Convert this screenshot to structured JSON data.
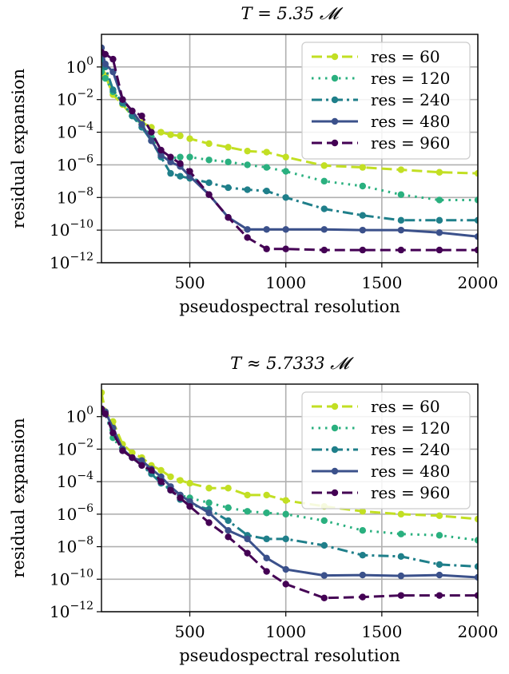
{
  "chart_data": [
    {
      "type": "line",
      "title": "T = 5.35 𝓜",
      "xlabel": "pseudospectral resolution",
      "ylabel": "residual expansion",
      "xlim": [
        40,
        2000
      ],
      "ylim": [
        1e-12,
        100.0
      ],
      "yscale": "log",
      "grid": true,
      "legend_position": "top-right",
      "x_ticks": [
        500,
        1000,
        1500,
        2000
      ],
      "x_tick_labels": [
        "500",
        "1000",
        "1500",
        "2000"
      ],
      "y_ticks": [
        1.0,
        0.01,
        0.0001,
        1e-06,
        1e-08,
        1e-10,
        1e-12
      ],
      "y_tick_labels": [
        {
          "base": "10",
          "exp": "0"
        },
        {
          "base": "10",
          "exp": "−2"
        },
        {
          "base": "10",
          "exp": "−4"
        },
        {
          "base": "10",
          "exp": "−6"
        },
        {
          "base": "10",
          "exp": "−8"
        },
        {
          "base": "10",
          "exp": "−10"
        },
        {
          "base": "10",
          "exp": "−12"
        }
      ],
      "series": [
        {
          "name": "res = 60",
          "color": "#c2df23",
          "dash": "dashed",
          "x": [
            40,
            60,
            100,
            150,
            200,
            250,
            300,
            350,
            400,
            450,
            500,
            600,
            700,
            800,
            900,
            1000,
            1200,
            1400,
            1600,
            1800,
            2000
          ],
          "y": [
            1.5,
            0.3,
            0.02,
            0.005,
            0.001,
            0.0004,
            0.0002,
            0.0001,
            7e-05,
            6e-05,
            4e-05,
            2e-05,
            1.2e-05,
            7e-06,
            6e-06,
            3e-06,
            9e-07,
            7e-07,
            5e-07,
            3.5e-07,
            3e-07
          ]
        },
        {
          "name": "res = 120",
          "color": "#2ab07f",
          "dash": "dotted",
          "x": [
            40,
            60,
            100,
            150,
            200,
            250,
            300,
            350,
            400,
            450,
            500,
            600,
            700,
            800,
            900,
            1000,
            1200,
            1400,
            1600,
            1800,
            2000
          ],
          "y": [
            0.5,
            0.2,
            0.03,
            0.006,
            0.001,
            0.0003,
            5e-05,
            6e-06,
            2.5e-06,
            3e-06,
            3e-06,
            2e-06,
            1.5e-06,
            1e-06,
            7e-07,
            4e-07,
            1e-07,
            5e-08,
            1.5e-08,
            7e-09,
            7e-09
          ]
        },
        {
          "name": "res = 240",
          "color": "#1f7f8a",
          "dash": "dashdot",
          "x": [
            40,
            60,
            100,
            150,
            200,
            250,
            300,
            350,
            400,
            450,
            500,
            600,
            700,
            800,
            900,
            1000,
            1200,
            1400,
            1600,
            1800,
            2000
          ],
          "y": [
            3,
            1,
            0.04,
            0.006,
            0.001,
            0.0002,
            3e-05,
            3e-06,
            3e-07,
            2e-07,
            1.5e-07,
            8e-08,
            4e-08,
            3e-08,
            2.5e-08,
            1e-08,
            2e-09,
            8e-10,
            4e-10,
            4e-10,
            4e-10
          ]
        },
        {
          "name": "res = 480",
          "color": "#3b518b",
          "dash": "solid",
          "x": [
            40,
            60,
            100,
            150,
            200,
            250,
            300,
            350,
            400,
            450,
            500,
            600,
            700,
            800,
            900,
            1000,
            1200,
            1400,
            1600,
            1800,
            2000
          ],
          "y": [
            15,
            1.5,
            0.5,
            0.01,
            0.002,
            0.0003,
            3e-05,
            4e-06,
            1.5e-06,
            8e-07,
            2e-07,
            1.5e-08,
            6e-10,
            1.1e-10,
            1.1e-10,
            1.1e-10,
            1.1e-10,
            1e-10,
            1e-10,
            7e-11,
            4e-11
          ]
        },
        {
          "name": "res = 960",
          "color": "#440154",
          "dash": "dashed",
          "x": [
            40,
            60,
            100,
            150,
            200,
            250,
            300,
            350,
            400,
            450,
            500,
            600,
            700,
            800,
            900,
            1000,
            1200,
            1400,
            1600,
            1800,
            2000
          ],
          "y": [
            8,
            6,
            3,
            0.01,
            0.002,
            0.001,
            0.0001,
            8e-06,
            3e-06,
            1.2e-06,
            4e-07,
            1.5e-08,
            6e-10,
            3.5e-11,
            7e-12,
            7e-12,
            6e-12,
            6e-12,
            6e-12,
            6e-12,
            6e-12
          ]
        }
      ]
    },
    {
      "type": "line",
      "title": "T ≈ 5.7333 𝓜",
      "xlabel": "pseudospectral resolution",
      "ylabel": "residual expansion",
      "xlim": [
        40,
        2000
      ],
      "ylim": [
        1e-12,
        100.0
      ],
      "yscale": "log",
      "grid": true,
      "legend_position": "top-right",
      "x_ticks": [
        500,
        1000,
        1500,
        2000
      ],
      "x_tick_labels": [
        "500",
        "1000",
        "1500",
        "2000"
      ],
      "y_ticks": [
        1.0,
        0.01,
        0.0001,
        1e-06,
        1e-08,
        1e-10,
        1e-12
      ],
      "y_tick_labels": [
        {
          "base": "10",
          "exp": "0"
        },
        {
          "base": "10",
          "exp": "−2"
        },
        {
          "base": "10",
          "exp": "−4"
        },
        {
          "base": "10",
          "exp": "−6"
        },
        {
          "base": "10",
          "exp": "−8"
        },
        {
          "base": "10",
          "exp": "−10"
        },
        {
          "base": "10",
          "exp": "−12"
        }
      ],
      "series": [
        {
          "name": "res = 60",
          "color": "#c2df23",
          "dash": "dashed",
          "x": [
            40,
            60,
            100,
            150,
            200,
            250,
            300,
            350,
            400,
            450,
            500,
            600,
            700,
            800,
            900,
            1000,
            1200,
            1400,
            1600,
            1800,
            2000
          ],
          "y": [
            30,
            2,
            0.5,
            0.02,
            0.006,
            0.003,
            0.001,
            0.0005,
            0.0002,
            0.00012,
            8e-05,
            4e-05,
            4e-05,
            1.5e-05,
            1.5e-05,
            7e-06,
            3e-06,
            1.5e-06,
            1e-06,
            8e-07,
            5e-07
          ]
        },
        {
          "name": "res = 120",
          "color": "#2ab07f",
          "dash": "dotted",
          "x": [
            40,
            60,
            100,
            150,
            200,
            250,
            300,
            350,
            400,
            450,
            500,
            600,
            700,
            800,
            900,
            1000,
            1200,
            1400,
            1600,
            1800,
            2000
          ],
          "y": [
            2,
            1.5,
            0.05,
            0.008,
            0.003,
            0.001,
            0.0004,
            0.0001,
            3e-05,
            1.5e-05,
            1e-05,
            5e-06,
            2.5e-06,
            1.5e-06,
            1.2e-06,
            1e-06,
            4e-07,
            1e-07,
            6e-08,
            5e-08,
            2.5e-08
          ]
        },
        {
          "name": "res = 240",
          "color": "#1f7f8a",
          "dash": "dashdot",
          "x": [
            40,
            60,
            100,
            150,
            200,
            250,
            300,
            350,
            400,
            450,
            500,
            600,
            700,
            800,
            900,
            1000,
            1200,
            1400,
            1600,
            1800,
            2000
          ],
          "y": [
            3,
            1.5,
            0.1,
            0.01,
            0.003,
            0.001,
            0.0003,
            8e-05,
            3e-05,
            8e-06,
            4e-06,
            2e-06,
            4e-07,
            5e-08,
            3e-08,
            3e-08,
            1.2e-08,
            3e-09,
            2.5e-09,
            8e-10,
            6e-10
          ]
        },
        {
          "name": "res = 480",
          "color": "#3b518b",
          "dash": "solid",
          "x": [
            40,
            60,
            100,
            150,
            200,
            250,
            300,
            350,
            400,
            450,
            500,
            600,
            700,
            800,
            900,
            1000,
            1200,
            1400,
            1600,
            1800,
            2000
          ],
          "y": [
            3,
            2,
            0.2,
            0.01,
            0.003,
            0.002,
            0.0006,
            0.0002,
            5e-05,
            1.5e-05,
            6e-06,
            1.2e-06,
            1e-07,
            3e-08,
            2e-09,
            4e-10,
            1.7e-10,
            1.8e-10,
            1.6e-10,
            1.8e-10,
            1.3e-10
          ]
        },
        {
          "name": "res = 960",
          "color": "#440154",
          "dash": "dashed",
          "x": [
            40,
            60,
            100,
            150,
            200,
            250,
            300,
            350,
            400,
            450,
            500,
            600,
            700,
            800,
            900,
            1000,
            1200,
            1400,
            1600,
            1800,
            2000
          ],
          "y": [
            3,
            1.5,
            0.1,
            0.008,
            0.003,
            0.001,
            0.0005,
            0.0001,
            3e-05,
            1e-05,
            3e-06,
            3e-07,
            4e-08,
            4e-09,
            3e-10,
            5e-11,
            7e-12,
            8e-12,
            1e-11,
            1e-11,
            1e-11
          ]
        }
      ]
    }
  ]
}
